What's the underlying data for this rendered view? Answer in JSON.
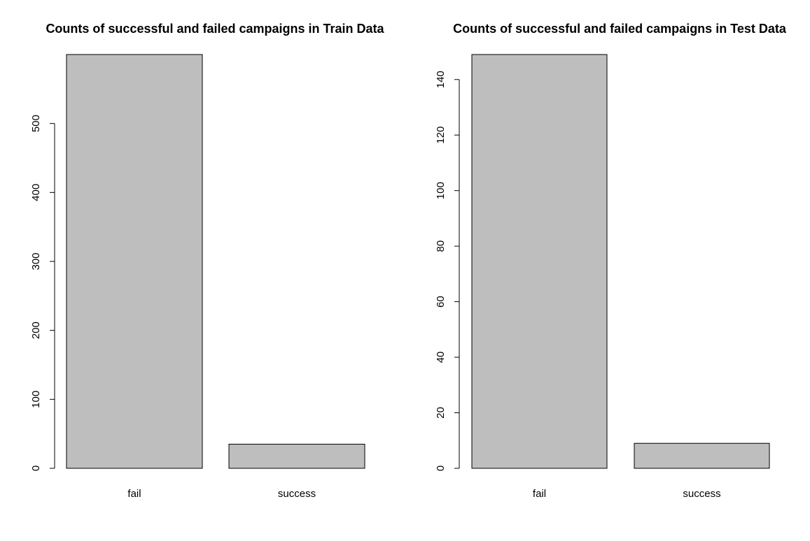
{
  "chart_data": [
    {
      "type": "bar",
      "title": "Counts of successful and failed campaigns in Train Data",
      "categories": [
        "fail",
        "success"
      ],
      "values": [
        600,
        35
      ],
      "ylim": [
        0,
        600
      ],
      "yticks": [
        0,
        100,
        200,
        300,
        400,
        500
      ],
      "xlabel": "",
      "ylabel": "",
      "bar_color": "#bebebe",
      "grid": false
    },
    {
      "type": "bar",
      "title": "Counts of successful and failed campaigns in Test Data",
      "categories": [
        "fail",
        "success"
      ],
      "values": [
        149,
        9
      ],
      "ylim": [
        0,
        149
      ],
      "yticks": [
        0,
        20,
        40,
        60,
        80,
        100,
        120,
        140
      ],
      "xlabel": "",
      "ylabel": "",
      "bar_color": "#bebebe",
      "grid": false
    }
  ]
}
